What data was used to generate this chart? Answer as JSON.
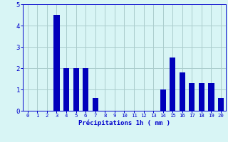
{
  "categories": [
    0,
    1,
    2,
    3,
    4,
    5,
    6,
    7,
    8,
    9,
    10,
    11,
    12,
    13,
    14,
    15,
    16,
    17,
    18,
    19,
    20
  ],
  "values": [
    0,
    0,
    0,
    4.5,
    2.0,
    2.0,
    2.0,
    0.6,
    0,
    0,
    0,
    0,
    0,
    0,
    1.0,
    2.5,
    1.8,
    1.3,
    1.3,
    1.3,
    0.6
  ],
  "bar_color": "#0000bb",
  "background_color": "#d8f5f5",
  "grid_color": "#aacccc",
  "xlabel": "Précipitations 1h ( mm )",
  "xlabel_color": "#0000cc",
  "tick_color": "#0000cc",
  "ylim": [
    0,
    5
  ],
  "yticks": [
    0,
    1,
    2,
    3,
    4,
    5
  ],
  "xlim": [
    -0.5,
    20.5
  ],
  "bar_width": 0.6
}
